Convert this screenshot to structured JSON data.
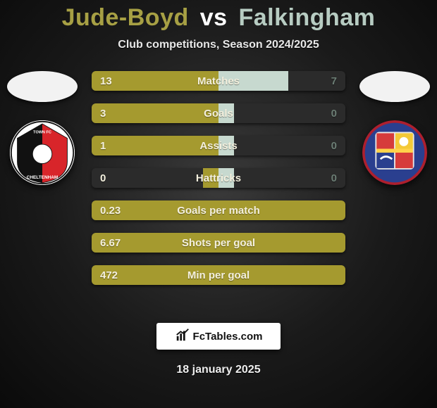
{
  "title": {
    "player1": "Jude-Boyd",
    "vs": "vs",
    "player2": "Falkingham",
    "player1_color": "#a7a044",
    "player2_color": "#b7ccc2"
  },
  "subtitle": "Club competitions, Season 2024/2025",
  "colors": {
    "left_fill": "#a59a2f",
    "right_fill": "#c7d9cf",
    "bar_bg_dark": "#2b2b2b",
    "text_light": "#f4f0de",
    "text_dark_on_right": "#9aa79f"
  },
  "stats": [
    {
      "label": "Matches",
      "left_val": "13",
      "right_val": "7",
      "left_pct": 100,
      "right_pct": 55
    },
    {
      "label": "Goals",
      "left_val": "3",
      "right_val": "0",
      "left_pct": 100,
      "right_pct": 12
    },
    {
      "label": "Assists",
      "left_val": "1",
      "right_val": "0",
      "left_pct": 100,
      "right_pct": 12
    },
    {
      "label": "Hattricks",
      "left_val": "0",
      "right_val": "0",
      "left_pct": 12,
      "right_pct": 12
    },
    {
      "label": "Goals per match",
      "left_val": "0.23",
      "right_val": "",
      "left_pct": 100,
      "right_pct": 0
    },
    {
      "label": "Shots per goal",
      "left_val": "6.67",
      "right_val": "",
      "left_pct": 100,
      "right_pct": 0
    },
    {
      "label": "Min per goal",
      "left_val": "472",
      "right_val": "",
      "left_pct": 100,
      "right_pct": 0
    }
  ],
  "brand": "FcTables.com",
  "date": "18 january 2025",
  "icons": {
    "chart": "chart",
    "flag_left": "flag-oval",
    "flag_right": "flag-oval"
  }
}
